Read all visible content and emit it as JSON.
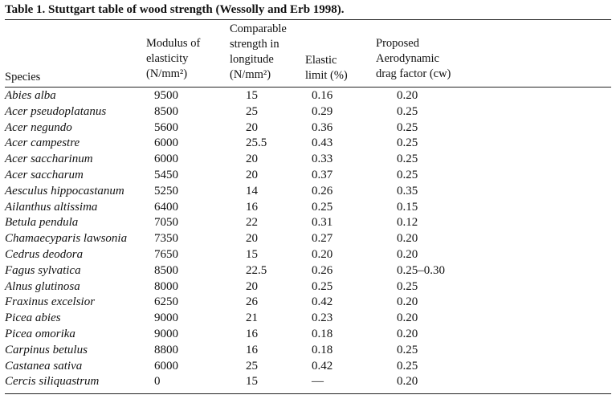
{
  "title": "Table 1. Stuttgart table of wood strength (Wessolly and Erb 1998).",
  "headers": {
    "species": "Species",
    "modulus_lines": [
      "Modulus of",
      "elasticity",
      "(N/mm²)"
    ],
    "strength_lines": [
      "Comparable",
      "strength in",
      "longitude",
      "(N/mm²)"
    ],
    "elastic_lines": [
      "Elastic",
      "limit (%)"
    ],
    "drag_lines": [
      "Proposed",
      "Aerodynamic",
      "drag factor (cw)"
    ]
  },
  "rows": [
    {
      "species": "Abies alba",
      "modulus": "9500",
      "strength": "15",
      "elastic": "0.16",
      "drag": "0.20"
    },
    {
      "species": "Acer pseudoplatanus",
      "modulus": "8500",
      "strength": "25",
      "elastic": "0.29",
      "drag": "0.25"
    },
    {
      "species": "Acer negundo",
      "modulus": "5600",
      "strength": "20",
      "elastic": "0.36",
      "drag": "0.25"
    },
    {
      "species": "Acer campestre",
      "modulus": "6000",
      "strength": "25.5",
      "elastic": "0.43",
      "drag": "0.25"
    },
    {
      "species": "Acer saccharinum",
      "modulus": "6000",
      "strength": "20",
      "elastic": "0.33",
      "drag": "0.25"
    },
    {
      "species": "Acer saccharum",
      "modulus": "5450",
      "strength": "20",
      "elastic": "0.37",
      "drag": "0.25"
    },
    {
      "species": "Aesculus hippocastanum",
      "modulus": "5250",
      "strength": "14",
      "elastic": "0.26",
      "drag": "0.35"
    },
    {
      "species": "Ailanthus altissima",
      "modulus": "6400",
      "strength": "16",
      "elastic": "0.25",
      "drag": "0.15"
    },
    {
      "species": "Betula pendula",
      "modulus": "7050",
      "strength": "22",
      "elastic": "0.31",
      "drag": "0.12"
    },
    {
      "species": "Chamaecyparis lawsonia",
      "modulus": "7350",
      "strength": "20",
      "elastic": "0.27",
      "drag": "0.20"
    },
    {
      "species": "Cedrus deodora",
      "modulus": "7650",
      "strength": "15",
      "elastic": "0.20",
      "drag": "0.20"
    },
    {
      "species": "Fagus sylvatica",
      "modulus": "8500",
      "strength": "22.5",
      "elastic": "0.26",
      "drag": "0.25–0.30"
    },
    {
      "species": "Alnus glutinosa",
      "modulus": "8000",
      "strength": "20",
      "elastic": "0.25",
      "drag": "0.25"
    },
    {
      "species": "Fraxinus excelsior",
      "modulus": "6250",
      "strength": "26",
      "elastic": "0.42",
      "drag": "0.20"
    },
    {
      "species": "Picea abies",
      "modulus": "9000",
      "strength": "21",
      "elastic": "0.23",
      "drag": "0.20"
    },
    {
      "species": "Picea omorika",
      "modulus": "9000",
      "strength": "16",
      "elastic": "0.18",
      "drag": "0.20"
    },
    {
      "species": "Carpinus betulus",
      "modulus": "8800",
      "strength": "16",
      "elastic": "0.18",
      "drag": "0.25"
    },
    {
      "species": "Castanea sativa",
      "modulus": "6000",
      "strength": "25",
      "elastic": "0.42",
      "drag": "0.25"
    },
    {
      "species": "Cercis siliquastrum",
      "modulus": "0",
      "strength": "15",
      "elastic": "—",
      "drag": "0.20"
    }
  ]
}
